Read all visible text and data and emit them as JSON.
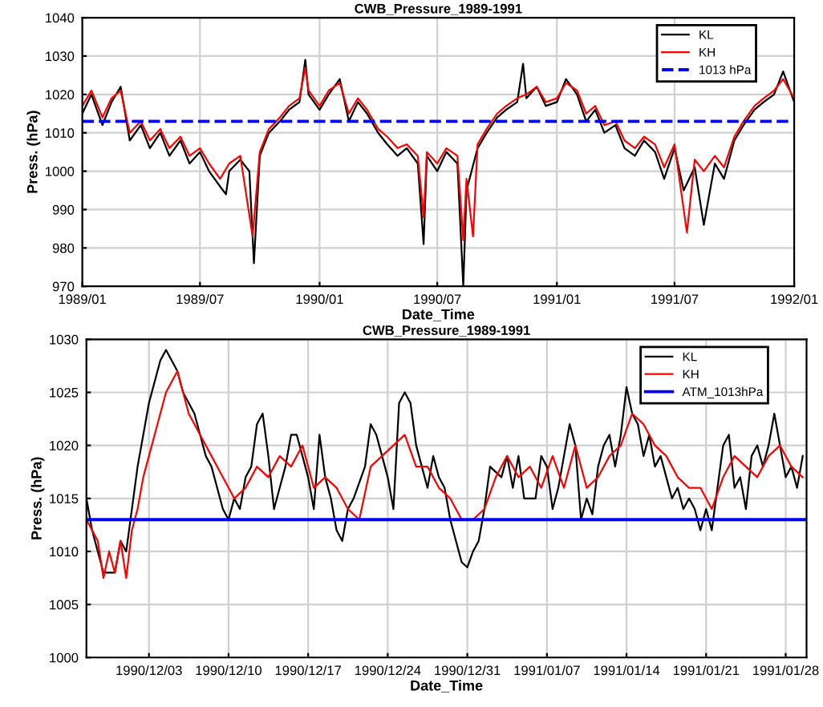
{
  "chart_data": [
    {
      "type": "line",
      "title": "CWB_Pressure_1989-1991",
      "xlabel": "Date_Time",
      "ylabel": "Press. (hPa)",
      "xlim": [
        "1989-01-01",
        "1992-01-01"
      ],
      "ylim": [
        970,
        1040
      ],
      "yticks": [
        970,
        980,
        990,
        1000,
        1010,
        1020,
        1030,
        1040
      ],
      "xticks": [
        {
          "value": "1989-01-01",
          "label": "1989/01"
        },
        {
          "value": "1989-07-01",
          "label": "1989/07"
        },
        {
          "value": "1990-01-01",
          "label": "1990/01"
        },
        {
          "value": "1990-07-01",
          "label": "1990/07"
        },
        {
          "value": "1991-01-01",
          "label": "1991/01"
        },
        {
          "value": "1991-07-01",
          "label": "1991/07"
        },
        {
          "value": "1992-01-01",
          "label": "1992/01"
        }
      ],
      "grid": true,
      "legend": "top right",
      "series": [
        {
          "name": "KL",
          "color": "#000000",
          "x": [
            "1989-01-01",
            "1989-01-15",
            "1989-02-01",
            "1989-02-15",
            "1989-03-01",
            "1989-03-15",
            "1989-04-01",
            "1989-04-15",
            "1989-05-01",
            "1989-05-15",
            "1989-06-01",
            "1989-06-15",
            "1989-07-01",
            "1989-07-15",
            "1989-08-01",
            "1989-08-10",
            "1989-08-15",
            "1989-09-01",
            "1989-09-15",
            "1989-09-22",
            "1989-10-01",
            "1989-10-15",
            "1989-11-01",
            "1989-11-15",
            "1989-12-01",
            "1989-12-10",
            "1989-12-15",
            "1990-01-01",
            "1990-01-15",
            "1990-02-01",
            "1990-02-15",
            "1990-03-01",
            "1990-03-15",
            "1990-04-01",
            "1990-04-15",
            "1990-05-01",
            "1990-05-15",
            "1990-06-01",
            "1990-06-10",
            "1990-06-15",
            "1990-07-01",
            "1990-07-15",
            "1990-08-01",
            "1990-08-10",
            "1990-08-15",
            "1990-09-01",
            "1990-09-15",
            "1990-10-01",
            "1990-10-15",
            "1990-11-01",
            "1990-11-10",
            "1990-11-15",
            "1990-12-01",
            "1990-12-15",
            "1991-01-01",
            "1991-01-15",
            "1991-02-01",
            "1991-02-15",
            "1991-03-01",
            "1991-03-15",
            "1991-04-01",
            "1991-04-15",
            "1991-05-01",
            "1991-05-15",
            "1991-06-01",
            "1991-06-15",
            "1991-07-01",
            "1991-07-15",
            "1991-08-01",
            "1991-08-15",
            "1991-09-01",
            "1991-09-15",
            "1991-10-01",
            "1991-10-15",
            "1991-11-01",
            "1991-11-15",
            "1991-12-01",
            "1991-12-15",
            "1992-01-01"
          ],
          "values": [
            1015,
            1020,
            1012,
            1018,
            1022,
            1008,
            1012,
            1006,
            1010,
            1004,
            1008,
            1002,
            1005,
            1000,
            996,
            994,
            1000,
            1003,
            1000,
            976,
            1004,
            1010,
            1013,
            1016,
            1018,
            1029,
            1020,
            1016,
            1020,
            1024,
            1013,
            1018,
            1015,
            1010,
            1007,
            1004,
            1006,
            1002,
            981,
            1004,
            1000,
            1005,
            1002,
            970,
            995,
            1006,
            1010,
            1014,
            1016,
            1018,
            1028,
            1019,
            1022,
            1017,
            1018,
            1024,
            1020,
            1013,
            1016,
            1010,
            1012,
            1006,
            1004,
            1008,
            1005,
            998,
            1006,
            995,
            1001,
            986,
            1002,
            998,
            1008,
            1012,
            1016,
            1018,
            1020,
            1026,
            1018
          ]
        },
        {
          "name": "KH",
          "color": "#ff0000",
          "x": [
            "1989-01-01",
            "1989-01-15",
            "1989-02-01",
            "1989-02-15",
            "1989-03-01",
            "1989-03-15",
            "1989-04-01",
            "1989-04-15",
            "1989-05-01",
            "1989-05-15",
            "1989-06-01",
            "1989-06-15",
            "1989-07-01",
            "1989-07-15",
            "1989-08-01",
            "1989-08-15",
            "1989-09-01",
            "1989-09-20",
            "1989-10-01",
            "1989-10-15",
            "1989-11-01",
            "1989-11-15",
            "1989-12-01",
            "1989-12-10",
            "1989-12-15",
            "1990-01-01",
            "1990-01-15",
            "1990-02-01",
            "1990-02-15",
            "1990-03-01",
            "1990-03-15",
            "1990-04-01",
            "1990-04-15",
            "1990-05-01",
            "1990-05-15",
            "1990-06-01",
            "1990-06-10",
            "1990-06-15",
            "1990-07-01",
            "1990-07-15",
            "1990-08-01",
            "1990-08-10",
            "1990-08-15",
            "1990-08-25",
            "1990-09-01",
            "1990-09-15",
            "1990-10-01",
            "1990-10-15",
            "1990-11-01",
            "1990-11-15",
            "1990-12-01",
            "1990-12-15",
            "1991-01-01",
            "1991-01-15",
            "1991-02-01",
            "1991-02-15",
            "1991-03-01",
            "1991-03-15",
            "1991-04-01",
            "1991-04-15",
            "1991-05-01",
            "1991-05-15",
            "1991-06-01",
            "1991-06-15",
            "1991-07-01",
            "1991-07-20",
            "1991-08-01",
            "1991-08-15",
            "1991-09-01",
            "1991-09-15",
            "1991-10-01",
            "1991-10-15",
            "1991-11-01",
            "1991-11-15",
            "1991-12-01",
            "1991-12-15",
            "1992-01-01"
          ],
          "values": [
            1017,
            1021,
            1014,
            1019,
            1021,
            1010,
            1013,
            1008,
            1011,
            1006,
            1009,
            1004,
            1006,
            1002,
            998,
            1002,
            1004,
            983,
            1005,
            1011,
            1014,
            1017,
            1019,
            1027,
            1021,
            1017,
            1021,
            1023,
            1015,
            1019,
            1016,
            1011,
            1009,
            1006,
            1007,
            1004,
            988,
            1005,
            1002,
            1006,
            1004,
            982,
            998,
            983,
            1007,
            1011,
            1015,
            1017,
            1019,
            1020,
            1022,
            1018,
            1019,
            1023,
            1021,
            1015,
            1017,
            1012,
            1013,
            1008,
            1006,
            1009,
            1007,
            1001,
            1007,
            984,
            1003,
            1000,
            1004,
            1001,
            1009,
            1013,
            1017,
            1019,
            1021,
            1024,
            1019
          ]
        }
      ],
      "ref_lines": [
        {
          "axis": "y",
          "value": 1013,
          "label": "1013 hPa",
          "color": "#0000ff",
          "line_style": "dashed"
        }
      ]
    },
    {
      "type": "line",
      "title": "CWB_Pressure_1989-1991",
      "xlabel": "Date_Time",
      "ylabel": "Press. (hPa)",
      "xlim": [
        "1990-11-27T12:00",
        "1991-01-29T20:00"
      ],
      "ylim": [
        1000,
        1030
      ],
      "yticks": [
        1000,
        1005,
        1010,
        1015,
        1020,
        1025,
        1030
      ],
      "xticks": [
        {
          "value": "1990-12-03",
          "label": "1990/12/03"
        },
        {
          "value": "1990-12-10",
          "label": "1990/12/10"
        },
        {
          "value": "1990-12-17",
          "label": "1990/12/17"
        },
        {
          "value": "1990-12-24",
          "label": "1990/12/24"
        },
        {
          "value": "1990-12-31",
          "label": "1990/12/31"
        },
        {
          "value": "1991-01-07",
          "label": "1991/01/07"
        },
        {
          "value": "1991-01-14",
          "label": "1991/01/14"
        },
        {
          "value": "1991-01-21",
          "label": "1991/01/21"
        },
        {
          "value": "1991-01-28",
          "label": "1991/01/28"
        }
      ],
      "grid": true,
      "legend": "top right",
      "series": [
        {
          "name": "KL",
          "color": "#000000",
          "x": [
            "1990-11-27T12:00",
            "1990-11-28T00:00",
            "1990-11-28T12:00",
            "1990-11-29T00:00",
            "1990-11-30T00:00",
            "1990-11-30T12:00",
            "1990-12-01T00:00",
            "1990-12-01T12:00",
            "1990-12-02T00:00",
            "1990-12-02T12:00",
            "1990-12-03T00:00",
            "1990-12-03T12:00",
            "1990-12-04T00:00",
            "1990-12-04T12:00",
            "1990-12-05T00:00",
            "1990-12-05T12:00",
            "1990-12-06T00:00",
            "1990-12-06T12:00",
            "1990-12-07T00:00",
            "1990-12-07T12:00",
            "1990-12-08T00:00",
            "1990-12-08T12:00",
            "1990-12-09T00:00",
            "1990-12-09T12:00",
            "1990-12-10T00:00",
            "1990-12-10T12:00",
            "1990-12-11T00:00",
            "1990-12-11T12:00",
            "1990-12-12T00:00",
            "1990-12-12T12:00",
            "1990-12-13T00:00",
            "1990-12-13T12:00",
            "1990-12-14T00:00",
            "1990-12-14T12:00",
            "1990-12-15T00:00",
            "1990-12-15T12:00",
            "1990-12-16T00:00",
            "1990-12-16T12:00",
            "1990-12-17T00:00",
            "1990-12-17T12:00",
            "1990-12-18T00:00",
            "1990-12-18T12:00",
            "1990-12-19T00:00",
            "1990-12-19T12:00",
            "1990-12-20T00:00",
            "1990-12-20T12:00",
            "1990-12-21T00:00",
            "1990-12-22T00:00",
            "1990-12-22T12:00",
            "1990-12-23T00:00",
            "1990-12-23T12:00",
            "1990-12-24T00:00",
            "1990-12-24T12:00",
            "1990-12-25T00:00",
            "1990-12-25T12:00",
            "1990-12-26T00:00",
            "1990-12-26T12:00",
            "1990-12-27T00:00",
            "1990-12-27T12:00",
            "1990-12-28T00:00",
            "1990-12-28T12:00",
            "1990-12-29T00:00",
            "1990-12-29T12:00",
            "1990-12-30T00:00",
            "1990-12-30T12:00",
            "1990-12-31T00:00",
            "1990-12-31T12:00",
            "1991-01-01T00:00",
            "1991-01-01T12:00",
            "1991-01-02T00:00",
            "1991-01-03T00:00",
            "1991-01-03T12:00",
            "1991-01-04T00:00",
            "1991-01-04T12:00",
            "1991-01-05T00:00",
            "1991-01-06T00:00",
            "1991-01-06T12:00",
            "1991-01-07T00:00",
            "1991-01-07T12:00",
            "1991-01-08T00:00",
            "1991-01-08T12:00",
            "1991-01-09T00:00",
            "1991-01-09T12:00",
            "1991-01-10T00:00",
            "1991-01-10T12:00",
            "1991-01-11T00:00",
            "1991-01-11T12:00",
            "1991-01-12T00:00",
            "1991-01-12T12:00",
            "1991-01-13T00:00",
            "1991-01-13T12:00",
            "1991-01-14T00:00",
            "1991-01-14T12:00",
            "1991-01-15T00:00",
            "1991-01-15T12:00",
            "1991-01-16T00:00",
            "1991-01-16T12:00",
            "1991-01-17T00:00",
            "1991-01-17T12:00",
            "1991-01-18T00:00",
            "1991-01-18T12:00",
            "1991-01-19T00:00",
            "1991-01-19T12:00",
            "1991-01-20T00:00",
            "1991-01-20T12:00",
            "1991-01-21T00:00",
            "1991-01-21T12:00",
            "1991-01-22T00:00",
            "1991-01-22T12:00",
            "1991-01-23T00:00",
            "1991-01-23T12:00",
            "1991-01-24T00:00",
            "1991-01-24T12:00",
            "1991-01-25T00:00",
            "1991-01-25T12:00",
            "1991-01-26T00:00",
            "1991-01-26T12:00",
            "1991-01-27T00:00",
            "1991-01-27T12:00",
            "1991-01-28T00:00",
            "1991-01-28T12:00",
            "1991-01-29T00:00",
            "1991-01-29T12:00"
          ],
          "values": [
            1015,
            1012,
            1010,
            1008,
            1008,
            1011,
            1010,
            1014,
            1018,
            1021,
            1024,
            1026,
            1028,
            1029,
            1028,
            1027,
            1025,
            1024,
            1023,
            1021,
            1019,
            1018,
            1016,
            1014,
            1013,
            1015,
            1014,
            1017,
            1018,
            1022,
            1023,
            1019,
            1014,
            1016,
            1018,
            1021,
            1021,
            1019,
            1017,
            1014,
            1021,
            1017,
            1015,
            1012,
            1011,
            1014,
            1015,
            1018,
            1022,
            1021,
            1019,
            1017,
            1014,
            1024,
            1025,
            1024,
            1020,
            1018,
            1016,
            1019,
            1017,
            1016,
            1013,
            1011,
            1009,
            1008.5,
            1010,
            1011,
            1014,
            1018,
            1017,
            1019,
            1016,
            1019,
            1015,
            1015,
            1019,
            1018,
            1014,
            1016,
            1019,
            1022,
            1020,
            1013,
            1015,
            1013.5,
            1018,
            1020,
            1021,
            1018,
            1021,
            1025.5,
            1023,
            1022,
            1019,
            1021,
            1018,
            1019,
            1017,
            1015,
            1016,
            1014,
            1015,
            1014,
            1012,
            1014,
            1012,
            1016,
            1020,
            1021,
            1016,
            1017,
            1014,
            1019,
            1020,
            1018,
            1020,
            1023,
            1020,
            1017,
            1018,
            1016,
            1019
          ]
        },
        {
          "name": "KH",
          "color": "#ff0000",
          "x": [
            "1990-11-27T12:00",
            "1990-11-28T12:00",
            "1990-11-29T00:00",
            "1990-11-29T12:00",
            "1990-11-30T00:00",
            "1990-11-30T12:00",
            "1990-12-01T00:00",
            "1990-12-01T12:00",
            "1990-12-02T00:00",
            "1990-12-02T12:00",
            "1990-12-03T00:00",
            "1990-12-03T12:00",
            "1990-12-04T00:00",
            "1990-12-04T12:00",
            "1990-12-05T00:00",
            "1990-12-05T12:00",
            "1990-12-06T12:00",
            "1990-12-07T12:00",
            "1990-12-08T12:00",
            "1990-12-09T12:00",
            "1990-12-10T12:00",
            "1990-12-11T12:00",
            "1990-12-12T12:00",
            "1990-12-13T12:00",
            "1990-12-14T12:00",
            "1990-12-15T12:00",
            "1990-12-16T12:00",
            "1990-12-17T12:00",
            "1990-12-18T12:00",
            "1990-12-19T12:00",
            "1990-12-20T12:00",
            "1990-12-21T12:00",
            "1990-12-22T12:00",
            "1990-12-23T12:00",
            "1990-12-24T12:00",
            "1990-12-25T12:00",
            "1990-12-26T12:00",
            "1990-12-27T12:00",
            "1990-12-28T12:00",
            "1990-12-29T12:00",
            "1990-12-30T12:00",
            "1990-12-31T12:00",
            "1991-01-01T12:00",
            "1991-01-02T12:00",
            "1991-01-03T12:00",
            "1991-01-04T12:00",
            "1991-01-05T12:00",
            "1991-01-06T12:00",
            "1991-01-07T12:00",
            "1991-01-08T12:00",
            "1991-01-09T12:00",
            "1991-01-10T12:00",
            "1991-01-11T12:00",
            "1991-01-12T12:00",
            "1991-01-13T12:00",
            "1991-01-14T12:00",
            "1991-01-15T12:00",
            "1991-01-16T12:00",
            "1991-01-17T12:00",
            "1991-01-18T12:00",
            "1991-01-19T12:00",
            "1991-01-20T12:00",
            "1991-01-21T12:00",
            "1991-01-22T12:00",
            "1991-01-23T12:00",
            "1991-01-24T12:00",
            "1991-01-25T12:00",
            "1991-01-26T12:00",
            "1991-01-27T12:00",
            "1991-01-28T12:00",
            "1991-01-29T12:00"
          ],
          "values": [
            1013,
            1011,
            1007.5,
            1010,
            1008,
            1011,
            1007.5,
            1012,
            1014,
            1017,
            1019,
            1021,
            1023,
            1025,
            1026,
            1027,
            1023,
            1021,
            1019,
            1017,
            1015,
            1016,
            1018,
            1017,
            1019,
            1018,
            1020,
            1016,
            1017,
            1016,
            1014,
            1013,
            1018,
            1019,
            1020,
            1021,
            1018,
            1018,
            1016,
            1015,
            1013,
            1013,
            1014,
            1017,
            1019,
            1017,
            1018,
            1016,
            1019,
            1016,
            1020,
            1016,
            1017,
            1019,
            1020,
            1023,
            1022,
            1020,
            1019,
            1017,
            1016,
            1016,
            1014,
            1017,
            1019,
            1018,
            1017,
            1019,
            1020,
            1018,
            1017
          ]
        }
      ],
      "ref_lines": [
        {
          "axis": "y",
          "value": 1013,
          "label": "ATM_1013hPa",
          "color": "#0000ff",
          "line_style": "solid"
        }
      ]
    }
  ]
}
